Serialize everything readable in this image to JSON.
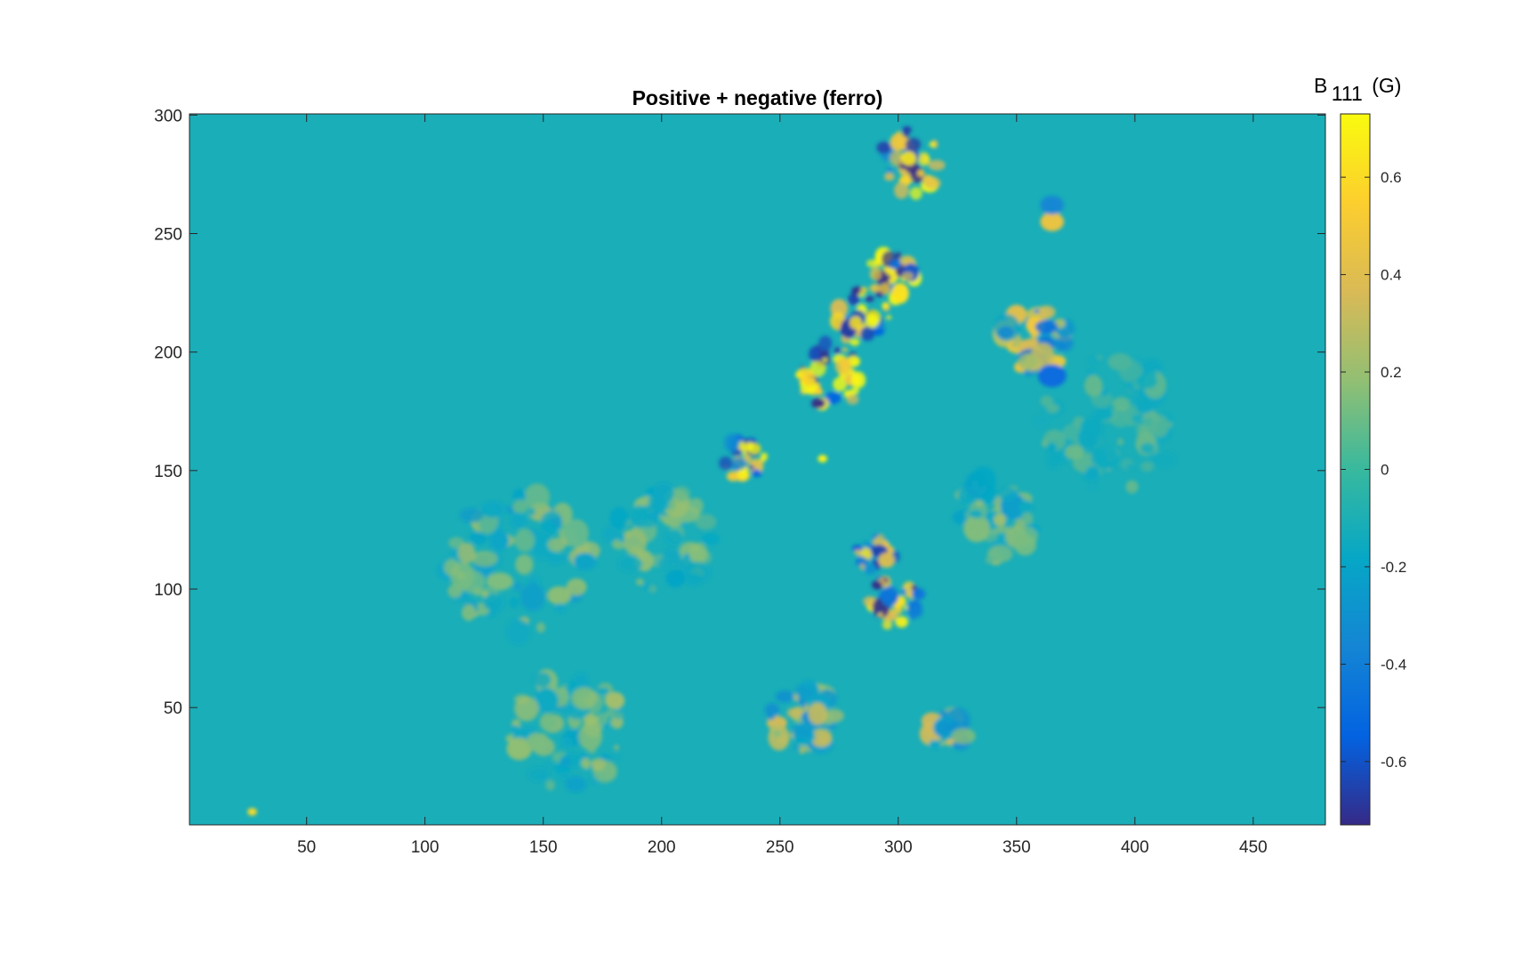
{
  "chart_data": {
    "type": "heatmap",
    "title": "Positive + negative (ferro)",
    "xlabel": "",
    "ylabel": "",
    "xlim": [
      0.5,
      480.5
    ],
    "ylim": [
      0.5,
      300.5
    ],
    "xticks": [
      50,
      100,
      150,
      200,
      250,
      300,
      350,
      400,
      450
    ],
    "yticks": [
      50,
      100,
      150,
      200,
      250,
      300
    ],
    "colormap": "parula",
    "colorbar": {
      "label_main": "B",
      "label_sub": "111",
      "label_unit": "(G)",
      "clim": [
        -0.73,
        0.73
      ],
      "ticks": [
        -0.6,
        -0.4,
        -0.2,
        0,
        0.2,
        0.4,
        0.6
      ]
    },
    "background_value": 0,
    "features": [
      {
        "x": 272,
        "y": 190,
        "radius": 14,
        "amplitude": 0.8,
        "kind": "mixed"
      },
      {
        "x": 285,
        "y": 215,
        "radius": 12,
        "amplitude": 0.8,
        "kind": "mixed"
      },
      {
        "x": 297,
        "y": 232,
        "radius": 10,
        "amplitude": 0.8,
        "kind": "mixed"
      },
      {
        "x": 298,
        "y": 95,
        "radius": 12,
        "amplitude": 0.75,
        "kind": "mixed"
      },
      {
        "x": 290,
        "y": 115,
        "radius": 8,
        "amplitude": 0.6,
        "kind": "mixed"
      },
      {
        "x": 305,
        "y": 280,
        "radius": 14,
        "amplitude": 0.7,
        "kind": "mixed"
      },
      {
        "x": 235,
        "y": 155,
        "radius": 9,
        "amplitude": 0.7,
        "kind": "mixed"
      },
      {
        "x": 358,
        "y": 205,
        "radius": 14,
        "amplitude": 0.45,
        "kind": "mixed"
      },
      {
        "x": 365,
        "y": 190,
        "radius": 6,
        "amplitude": -0.5,
        "kind": "spot"
      },
      {
        "x": 365,
        "y": 255,
        "radius": 5,
        "amplitude": 0.45,
        "kind": "spot"
      },
      {
        "x": 365,
        "y": 262,
        "radius": 5,
        "amplitude": -0.35,
        "kind": "spot"
      },
      {
        "x": 260,
        "y": 45,
        "radius": 14,
        "amplitude": 0.35,
        "kind": "mixed"
      },
      {
        "x": 320,
        "y": 40,
        "radius": 8,
        "amplitude": 0.35,
        "kind": "mixed"
      },
      {
        "x": 140,
        "y": 110,
        "radius": 30,
        "amplitude": 0.22,
        "kind": "mixed"
      },
      {
        "x": 160,
        "y": 40,
        "radius": 25,
        "amplitude": 0.2,
        "kind": "mixed"
      },
      {
        "x": 200,
        "y": 120,
        "radius": 22,
        "amplitude": 0.18,
        "kind": "mixed"
      },
      {
        "x": 340,
        "y": 130,
        "radius": 18,
        "amplitude": 0.2,
        "kind": "mixed"
      },
      {
        "x": 390,
        "y": 170,
        "radius": 30,
        "amplitude": 0.12,
        "kind": "mixed"
      },
      {
        "x": 27,
        "y": 6,
        "radius": 2,
        "amplitude": 0.6,
        "kind": "spot"
      },
      {
        "x": 268,
        "y": 155,
        "radius": 2,
        "amplitude": 0.7,
        "kind": "spot"
      }
    ]
  }
}
